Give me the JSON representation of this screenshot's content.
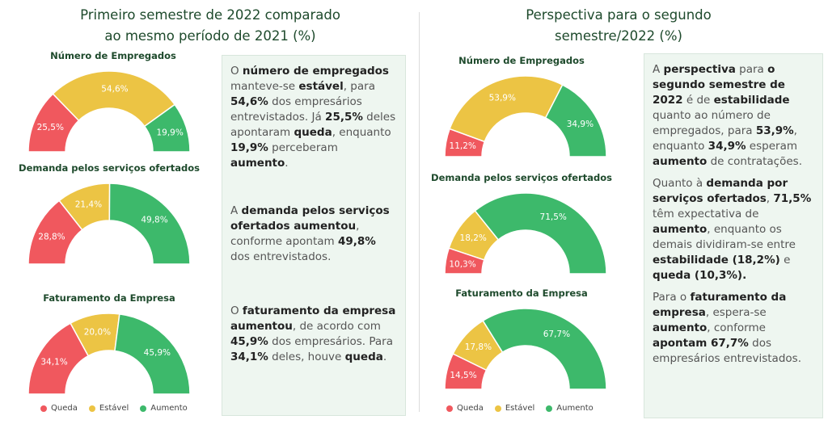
{
  "left": {
    "title_line1": "Primeiro semestre de 2022 comparado",
    "title_line2": "ao mesmo período de 2021 (%)",
    "text": {
      "p1": [
        "O ",
        "*número de empregados*",
        " manteve-se ",
        "*estável*",
        ", para ",
        "*54,6%*",
        " dos empresários entrevistados. Já ",
        "*25,5%*",
        " deles apontaram ",
        "*queda*",
        ", enquanto ",
        "*19,9%*",
        " perceberam ",
        "*aumento*",
        "."
      ],
      "p2": [
        "A ",
        "*demanda pelos serviços ofertados aumentou*",
        ", conforme apontam ",
        "*49,8%*",
        " dos entrevistados."
      ],
      "p3": [
        "O ",
        "*faturamento da empresa aumentou*",
        ", de acordo com ",
        "*45,9%*",
        " dos empresários. Para ",
        "*34,1%*",
        " deles, houve ",
        "*queda*",
        "."
      ]
    }
  },
  "right": {
    "title_line1": "Perspectiva para o segundo",
    "title_line2": "semestre/2022 (%)",
    "text": {
      "p1": [
        "A ",
        "*perspectiva*",
        " para ",
        "*o segundo semestre de 2022*",
        " é de ",
        "*estabilidade*",
        " quanto ao número de empregados, para ",
        "*53,9%*",
        ", enquanto ",
        "*34,9%*",
        " esperam ",
        "*aumento*",
        " de contratações."
      ],
      "p2": [
        "Quanto à ",
        "*demanda por serviços ofertados*",
        ", ",
        "*71,5%*",
        " têm expectativa de ",
        "*aumento*",
        ", enquanto os demais dividiram-se entre ",
        "*estabilidade (18,2%)*",
        " e ",
        "*queda (10,3%).*"
      ],
      "p3": [
        "Para o ",
        "*faturamento da empresa*",
        ", espera-se ",
        "*aumento*",
        ", conforme ",
        "*apontam 67,7%*",
        " dos empresários entrevistados."
      ]
    }
  },
  "legend": {
    "queda": "Queda",
    "estavel": "Estável",
    "aumento": "Aumento"
  },
  "colors": {
    "queda": "#f0585e",
    "estavel": "#ecc444",
    "aumento": "#3db96b"
  },
  "chart_data": [
    {
      "type": "pie",
      "title": "Número de Empregados",
      "categories": [
        "Queda",
        "Estável",
        "Aumento"
      ],
      "values": [
        25.5,
        54.6,
        19.9
      ],
      "labels": [
        "25,5%",
        "54,6%",
        "19,9%"
      ]
    },
    {
      "type": "pie",
      "title": "Demanda pelos serviços ofertados",
      "categories": [
        "Queda",
        "Estável",
        "Aumento"
      ],
      "values": [
        28.8,
        21.4,
        49.8
      ],
      "labels": [
        "28,8%",
        "21,4%",
        "49,8%"
      ]
    },
    {
      "type": "pie",
      "title": "Faturamento da Empresa",
      "categories": [
        "Queda",
        "Estável",
        "Aumento"
      ],
      "values": [
        34.1,
        20.0,
        45.9
      ],
      "labels": [
        "34,1%",
        "20,0%",
        "45,9%"
      ]
    },
    {
      "type": "pie",
      "title": "Número de Empregados",
      "categories": [
        "Queda",
        "Estável",
        "Aumento"
      ],
      "values": [
        11.2,
        53.9,
        34.9
      ],
      "labels": [
        "11,2%",
        "53,9%",
        "34,9%"
      ]
    },
    {
      "type": "pie",
      "title": "Demanda pelos serviços ofertados",
      "categories": [
        "Queda",
        "Estável",
        "Aumento"
      ],
      "values": [
        10.3,
        18.2,
        71.5
      ],
      "labels": [
        "10,3%",
        "18,2%",
        "71,5%"
      ]
    },
    {
      "type": "pie",
      "title": "Faturamento da Empresa",
      "categories": [
        "Queda",
        "Estável",
        "Aumento"
      ],
      "values": [
        14.5,
        17.8,
        67.7
      ],
      "labels": [
        "14,5%",
        "17,8%",
        "67,7%"
      ]
    }
  ]
}
